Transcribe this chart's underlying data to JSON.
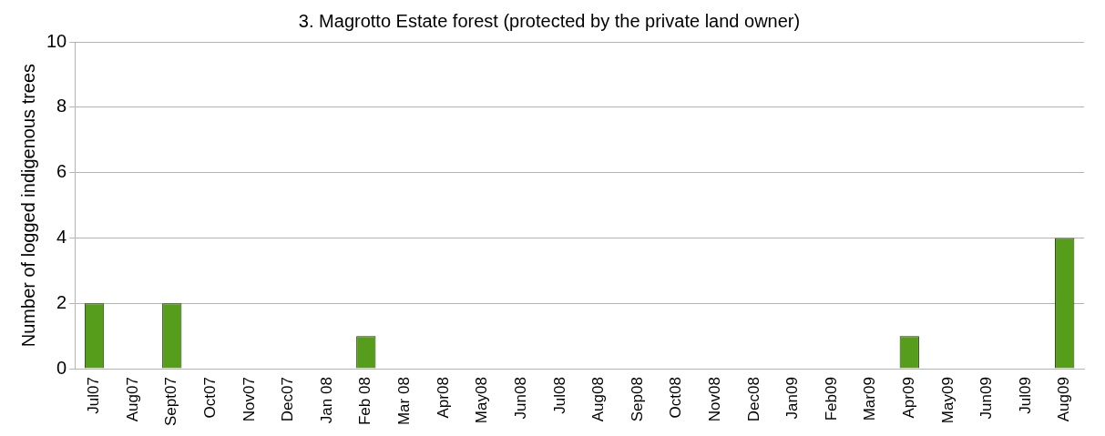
{
  "chart_data": {
    "type": "bar",
    "title": "3. Magrotto Estate forest (protected by the private land owner)",
    "ylabel": "Number of logged indigenous trees",
    "categories": [
      "Jul07",
      "Aug07",
      "Sept07",
      "Oct07",
      "Nov07",
      "Dec07",
      "Jan 08",
      "Feb 08",
      "Mar 08",
      "Apr08",
      "May08",
      "Jun08",
      "Jul08",
      "Aug08",
      "Sep08",
      "Oct08",
      "Nov08",
      "Dec08",
      "Jan09",
      "Feb09",
      "Mar09",
      "Apr09",
      "May09",
      "Jun09",
      "Jul09",
      "Aug09"
    ],
    "values": [
      2,
      0,
      2,
      0,
      0,
      0,
      0,
      1,
      0,
      0,
      0,
      0,
      0,
      0,
      0,
      0,
      0,
      0,
      0,
      0,
      0,
      1,
      0,
      0,
      0,
      4
    ],
    "color": "#579d1c",
    "ylim": [
      0,
      10
    ],
    "yticks": [
      0,
      2,
      4,
      6,
      8,
      10
    ],
    "grid": "y",
    "legend": false
  }
}
